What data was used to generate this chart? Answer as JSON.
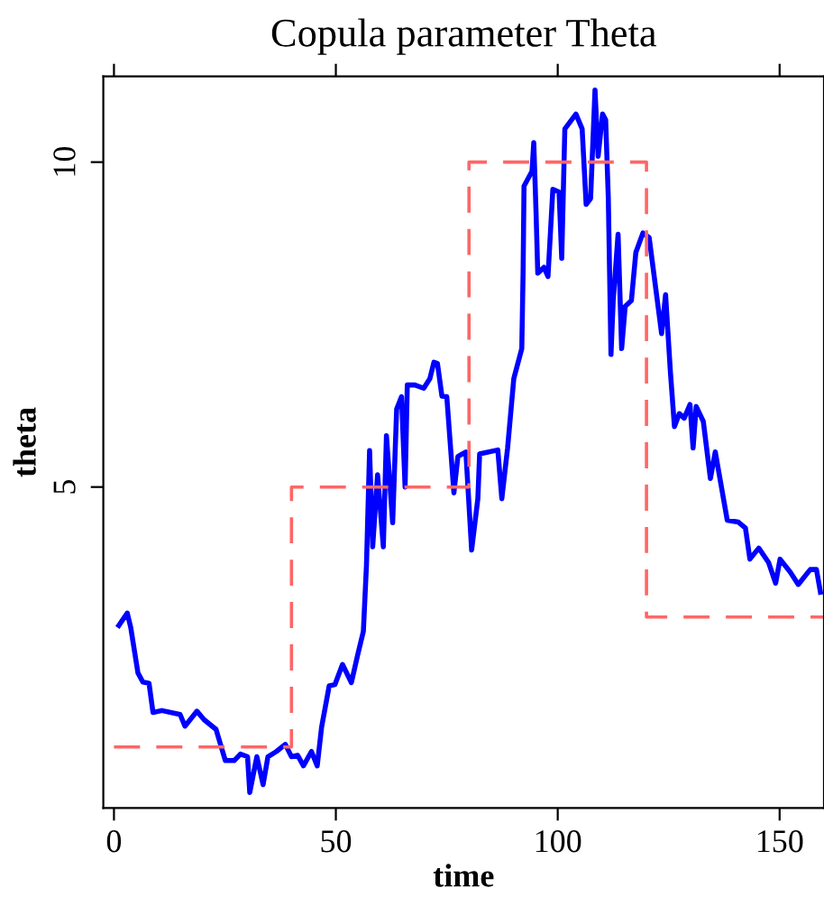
{
  "chart_data": {
    "type": "line",
    "title": "Copula parameter Theta",
    "xlabel": "time",
    "ylabel": "theta",
    "xlim": [
      -2.4,
      160
    ],
    "ylim": [
      0.06,
      11.32
    ],
    "xticks": [
      0,
      50,
      100,
      150
    ],
    "yticks": [
      5,
      10
    ],
    "grid": false,
    "legend": false,
    "series": [
      {
        "color": "#0000ff",
        "line_style": "solid",
        "x": [
          1.1,
          3,
          3.8,
          5.4,
          6.5,
          7.9,
          8.8,
          10.8,
          14.9,
          16,
          18.7,
          20.3,
          23,
          25.1,
          27.1,
          28.5,
          30.1,
          30.6,
          32.2,
          33.6,
          34.7,
          36.6,
          38.6,
          40,
          41.4,
          42.7,
          44.5,
          45.8,
          46.8,
          48.5,
          49.8,
          51.5,
          53.5,
          54.9,
          56.2,
          56.9,
          57.6,
          58.3,
          59.4,
          60.7,
          61.4,
          62.8,
          63.7,
          64.8,
          65.6,
          66.1,
          67.8,
          69.8,
          71.2,
          72.1,
          72.9,
          73.9,
          75,
          76.6,
          77.5,
          79.3,
          80.6,
          82,
          82.4,
          86.5,
          87.4,
          88.7,
          90.1,
          91.9,
          92.2,
          92.4,
          94.2,
          94.6,
          95.1,
          95.5,
          96.9,
          97.8,
          98.9,
          100.3,
          100.9,
          101.6,
          104.1,
          105.5,
          106.4,
          107.4,
          108.4,
          109.1,
          110.1,
          110.8,
          111.4,
          112,
          112.5,
          113.6,
          114.4,
          115.2,
          116.6,
          117.6,
          119.2,
          120.6,
          122,
          123.4,
          124.3,
          125.4,
          126.3,
          127.4,
          128.5,
          129.8,
          130.5,
          131.2,
          132.8,
          134.4,
          135.5,
          138.2,
          140.7,
          142.3,
          143.3,
          145.3,
          147.5,
          149.1,
          150.1,
          152.4,
          154.2,
          156.9,
          158.3,
          159.2
        ],
        "values": [
          2.87,
          3.06,
          2.83,
          2.14,
          2.0,
          1.98,
          1.53,
          1.56,
          1.5,
          1.32,
          1.55,
          1.42,
          1.27,
          0.79,
          0.79,
          0.89,
          0.85,
          0.3,
          0.85,
          0.42,
          0.85,
          0.93,
          1.04,
          0.85,
          0.87,
          0.71,
          0.93,
          0.71,
          1.31,
          1.94,
          1.96,
          2.27,
          1.99,
          2.41,
          2.78,
          3.8,
          5.56,
          4.08,
          5.19,
          4.08,
          5.79,
          4.45,
          6.2,
          6.39,
          5.0,
          6.57,
          6.57,
          6.52,
          6.67,
          6.92,
          6.9,
          6.4,
          6.39,
          4.91,
          5.47,
          5.54,
          4.03,
          4.82,
          5.51,
          5.57,
          4.82,
          5.6,
          6.67,
          7.13,
          8.33,
          9.63,
          9.86,
          10.3,
          9.26,
          8.29,
          8.38,
          8.24,
          9.58,
          9.54,
          8.52,
          10.51,
          10.74,
          10.51,
          9.35,
          9.44,
          11.11,
          10.09,
          10.74,
          10.65,
          9.44,
          7.04,
          7.87,
          8.89,
          7.13,
          7.78,
          7.87,
          8.61,
          8.91,
          8.84,
          8.1,
          7.36,
          7.96,
          6.76,
          5.93,
          6.13,
          6.06,
          6.27,
          5.6,
          6.24,
          6.01,
          5.13,
          5.54,
          4.49,
          4.46,
          4.37,
          3.89,
          4.06,
          3.84,
          3.52,
          3.89,
          3.69,
          3.5,
          3.73,
          3.73,
          3.38
        ]
      },
      {
        "type": "step",
        "color": "#ff6666",
        "line_style": "dashed",
        "x": [
          0,
          40,
          80,
          120,
          160
        ],
        "values": [
          1,
          5,
          10,
          3,
          3
        ]
      }
    ]
  }
}
